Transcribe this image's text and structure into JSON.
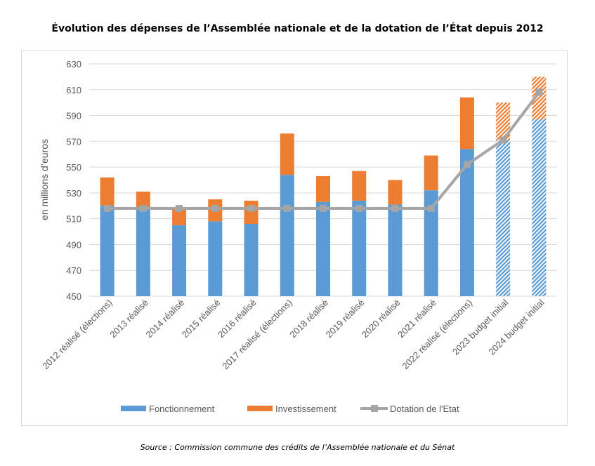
{
  "chart_data": {
    "type": "bar",
    "stacked": true,
    "title": "Évolution des dépenses de l’Assemblée nationale et de la dotation de l’État depuis 2012",
    "ylabel": "en millions d’euros",
    "xlabel": "",
    "ylim": [
      450,
      630
    ],
    "yticks": [
      450,
      470,
      490,
      510,
      530,
      550,
      570,
      590,
      610,
      630
    ],
    "grid": true,
    "legend_position": "bottom",
    "categories": [
      "2012 réalisé (élections)",
      "2013 réalisé",
      "2014 réalisé",
      "2015 réalisé",
      "2016 réalisé",
      "2017 réalisé (élections)",
      "2018 réalisé",
      "2019 réalisé",
      "2020 réalisé",
      "2021 réalisé",
      "2022 réalisé (élections)",
      "2023 budget initial",
      "2024 budget initial"
    ],
    "hatched": [
      false,
      false,
      false,
      false,
      false,
      false,
      false,
      false,
      false,
      false,
      false,
      true,
      true
    ],
    "series": [
      {
        "name": "Fonctionnement",
        "kind": "bar",
        "color": "#5b9bd5",
        "values": [
          520,
          519,
          505,
          508,
          506,
          544,
          523,
          524,
          521,
          532,
          564,
          571,
          587
        ]
      },
      {
        "name": "Investissement",
        "kind": "bar",
        "color": "#ed7d31",
        "values": [
          22,
          12,
          12,
          17,
          18,
          32,
          20,
          23,
          19,
          27,
          40,
          29,
          33
        ]
      },
      {
        "name": "Dotation de l'Etat",
        "kind": "line",
        "color": "#a5a5a5",
        "values": [
          518,
          518,
          518,
          518,
          518,
          518,
          518,
          518,
          518,
          518,
          552,
          571,
          608
        ]
      }
    ]
  },
  "source": "Source : Commission commune des crédits de l’Assemblée nationale et du Sénat"
}
